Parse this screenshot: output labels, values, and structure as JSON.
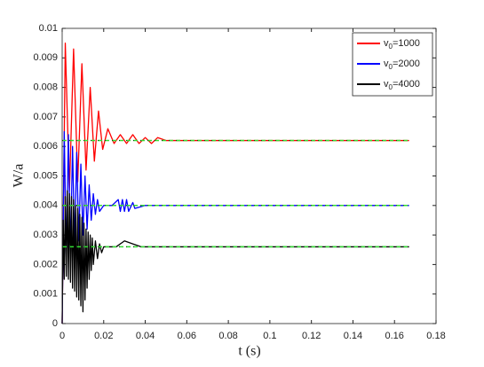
{
  "chart_data": {
    "type": "line",
    "x_label": "t (s)",
    "y_label": "W/a",
    "xlim": [
      0,
      0.18
    ],
    "xticks": [
      0,
      0.02,
      0.04,
      0.06,
      0.08,
      0.1,
      0.12,
      0.14,
      0.16,
      0.18
    ],
    "ylim": [
      0,
      0.01
    ],
    "yticks": [
      0,
      0.001,
      0.002,
      0.003,
      0.004,
      0.005,
      0.006,
      0.007,
      0.008,
      0.009,
      0.01
    ],
    "grid": false,
    "legend": "upper right",
    "series": [
      {
        "name": "v0=1000",
        "color": "#ff0000",
        "x": [
          0,
          0.0015,
          0.0035,
          0.0055,
          0.0075,
          0.0095,
          0.0115,
          0.0135,
          0.0155,
          0.0175,
          0.0195,
          0.022,
          0.025,
          0.028,
          0.031,
          0.034,
          0.037,
          0.04,
          0.043,
          0.046,
          0.05,
          0.06,
          0.167
        ],
        "values": [
          0,
          0.0095,
          0.0045,
          0.0093,
          0.0048,
          0.0088,
          0.0052,
          0.008,
          0.0055,
          0.0072,
          0.0059,
          0.0066,
          0.0061,
          0.0064,
          0.0061,
          0.0064,
          0.0061,
          0.0063,
          0.0061,
          0.0063,
          0.0062,
          0.0062,
          0.0062
        ]
      },
      {
        "name": "v0=2000",
        "color": "#0000ff",
        "x": [
          0,
          0.001,
          0.002,
          0.003,
          0.004,
          0.005,
          0.006,
          0.007,
          0.008,
          0.009,
          0.01,
          0.011,
          0.012,
          0.013,
          0.014,
          0.015,
          0.016,
          0.017,
          0.018,
          0.02,
          0.024,
          0.027,
          0.028,
          0.029,
          0.03,
          0.031,
          0.032,
          0.034,
          0.035,
          0.04,
          0.167
        ],
        "values": [
          0,
          0.0065,
          0.0022,
          0.0064,
          0.0024,
          0.006,
          0.0026,
          0.0058,
          0.0028,
          0.0054,
          0.003,
          0.005,
          0.0032,
          0.0047,
          0.0035,
          0.0044,
          0.0037,
          0.0042,
          0.0038,
          0.004,
          0.004,
          0.0042,
          0.0038,
          0.0042,
          0.0038,
          0.0042,
          0.0038,
          0.0041,
          0.0039,
          0.004,
          0.004
        ]
      },
      {
        "name": "v0=4000",
        "color": "#000000",
        "x": [
          0,
          0.0005,
          0.001,
          0.0015,
          0.002,
          0.0025,
          0.003,
          0.0035,
          0.004,
          0.0045,
          0.005,
          0.0055,
          0.006,
          0.0065,
          0.007,
          0.0075,
          0.008,
          0.0085,
          0.009,
          0.0095,
          0.01,
          0.0105,
          0.011,
          0.0115,
          0.012,
          0.0125,
          0.013,
          0.0135,
          0.014,
          0.0145,
          0.015,
          0.016,
          0.017,
          0.018,
          0.019,
          0.02,
          0.026,
          0.03,
          0.034,
          0.038,
          0.167
        ],
        "values": [
          0,
          0.0035,
          0.0015,
          0.0043,
          0.0016,
          0.0045,
          0.0015,
          0.0044,
          0.0014,
          0.0043,
          0.0012,
          0.0042,
          0.0011,
          0.004,
          0.0009,
          0.0039,
          0.0008,
          0.0037,
          0.0006,
          0.0036,
          0.0004,
          0.0034,
          0.0008,
          0.0032,
          0.0012,
          0.0031,
          0.0015,
          0.003,
          0.0018,
          0.0029,
          0.002,
          0.0028,
          0.0022,
          0.0027,
          0.0024,
          0.0026,
          0.0026,
          0.0028,
          0.0027,
          0.0026,
          0.0026
        ]
      }
    ],
    "reference_lines": [
      {
        "value": 0.0062,
        "color": "#33dd33"
      },
      {
        "value": 0.004,
        "color": "#33dd33"
      },
      {
        "value": 0.0026,
        "color": "#33dd33"
      }
    ]
  }
}
